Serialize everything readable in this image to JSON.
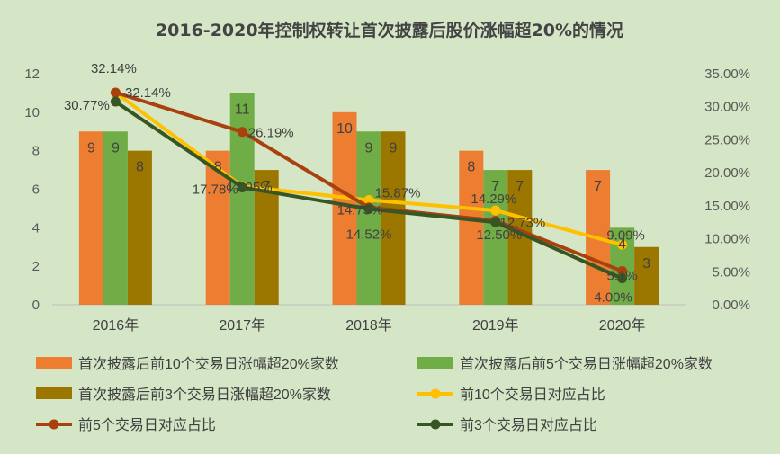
{
  "chart_data": {
    "type": "bar+line",
    "title": "2016-2020年控制权转让首次披露后股价涨幅超20%的情况",
    "categories": [
      "2016年",
      "2017年",
      "2018年",
      "2019年",
      "2020年"
    ],
    "y_left": {
      "min": 0,
      "max": 12,
      "step": 2,
      "ticks": [
        "0",
        "2",
        "4",
        "6",
        "8",
        "10",
        "12"
      ]
    },
    "y_right": {
      "min": 0,
      "max": 35,
      "step": 5,
      "ticks": [
        "0.00%",
        "5.00%",
        "10.00%",
        "15.00%",
        "20.00%",
        "25.00%",
        "30.00%",
        "35.00%"
      ]
    },
    "bar_series": [
      {
        "name": "首次披露后前10个交易日涨幅超20%家数",
        "color": "#ed7d31",
        "values": [
          9,
          8,
          10,
          8,
          7
        ],
        "labels": [
          "9",
          "8",
          "10",
          "8",
          "7"
        ]
      },
      {
        "name": "首次披露后前5个交易日涨幅超20%家数",
        "color": "#70ad47",
        "values": [
          9,
          11,
          9,
          7,
          4
        ],
        "labels": [
          "9",
          "11",
          "9",
          "7",
          "4"
        ]
      },
      {
        "name": "首次披露后前3个交易日涨幅超20%家数",
        "color": "#9c7700",
        "values": [
          8,
          7,
          9,
          7,
          3
        ],
        "labels": [
          "8",
          "7",
          "9",
          "7",
          "3"
        ]
      }
    ],
    "line_series": [
      {
        "name": "前10个交易日对应占比",
        "color": "#ffc000",
        "values": [
          32.14,
          17.95,
          15.87,
          14.29,
          9.09
        ],
        "labels": [
          "32.14%",
          "17.95%",
          "15.87%",
          "14.29%",
          "9.09%"
        ]
      },
      {
        "name": "前5个交易日对应占比",
        "color": "#a9410f",
        "values": [
          32.14,
          26.19,
          14.75,
          12.73,
          5.1
        ],
        "labels": [
          "32.14%",
          "26.19%",
          "14.75%",
          "12.73%",
          "5.1%"
        ]
      },
      {
        "name": "前3个交易日对应占比",
        "color": "#375623",
        "values": [
          30.77,
          17.78,
          14.52,
          12.5,
          4.0
        ],
        "labels": [
          "30.77%",
          "17.78%",
          "14.52%",
          "12.50%",
          "4.00%"
        ]
      }
    ],
    "legend_position": "bottom",
    "grid": false
  }
}
